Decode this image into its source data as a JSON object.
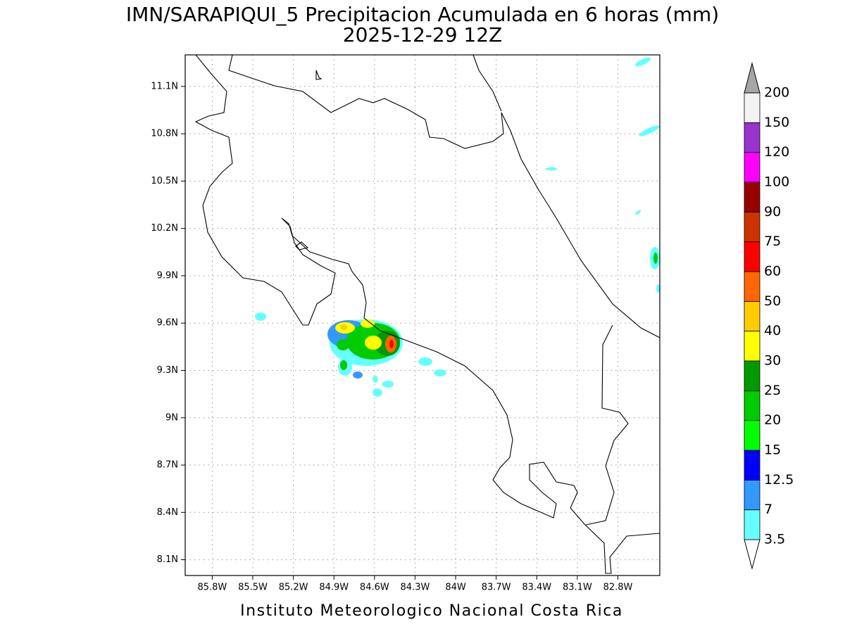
{
  "title": "IMN/SARAPIQUI_5 Precipitacion Acumulada en 6 horas (mm)",
  "subtitle": "2025-12-29 12Z",
  "footer": "Instituto Meteorologico Nacional Costa Rica",
  "map": {
    "xlim": [
      -86.0,
      -82.49
    ],
    "ylim": [
      8.0,
      11.3
    ],
    "grid": true,
    "yticks": [
      {
        "value": 11.1,
        "label": "11.1N"
      },
      {
        "value": 10.8,
        "label": "10.8N"
      },
      {
        "value": 10.5,
        "label": "10.5N"
      },
      {
        "value": 10.2,
        "label": "10.2N"
      },
      {
        "value": 9.9,
        "label": "9.9N"
      },
      {
        "value": 9.6,
        "label": "9.6N"
      },
      {
        "value": 9.3,
        "label": "9.3N"
      },
      {
        "value": 9,
        "label": "9N"
      },
      {
        "value": 8.7,
        "label": "8.7N"
      },
      {
        "value": 8.4,
        "label": "8.4N"
      },
      {
        "value": 8.1,
        "label": "8.1N"
      }
    ],
    "xticks": [
      {
        "value": -85.8,
        "label": "85.8W"
      },
      {
        "value": -85.5,
        "label": "85.5W"
      },
      {
        "value": -85.2,
        "label": "85.2W"
      },
      {
        "value": -84.9,
        "label": "84.9W"
      },
      {
        "value": -84.6,
        "label": "84.6W"
      },
      {
        "value": -84.3,
        "label": "84.3W"
      },
      {
        "value": -84,
        "label": "84W"
      },
      {
        "value": -83.7,
        "label": "83.7W"
      },
      {
        "value": -83.4,
        "label": "83.4W"
      },
      {
        "value": -83.1,
        "label": "83.1W"
      },
      {
        "value": -82.8,
        "label": "82.8W"
      }
    ]
  },
  "colorbar": {
    "levels": [
      3.5,
      7,
      12.5,
      15,
      20,
      25,
      30,
      40,
      50,
      60,
      75,
      90,
      100,
      120,
      150,
      200
    ],
    "colors": [
      "#ffffff",
      "#66ffff",
      "#3399ff",
      "#0000ff",
      "#00ff00",
      "#00cc00",
      "#009900",
      "#ffff00",
      "#ffcc00",
      "#ff6600",
      "#ff0000",
      "#cc3300",
      "#990000",
      "#ff00ff",
      "#9933cc",
      "#f2f2f2",
      "#a6a6a6"
    ]
  }
}
